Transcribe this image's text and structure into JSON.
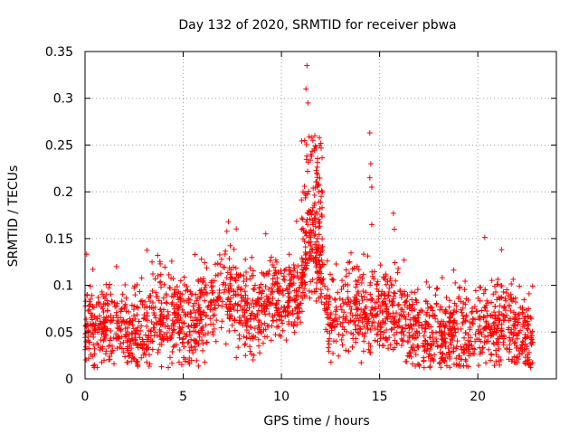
{
  "chart_data": {
    "type": "scatter",
    "title": "Day 132 of 2020, SRMTID for receiver pbwa",
    "xlabel": "GPS time / hours",
    "ylabel": "SRMTID / TECUs",
    "xlim": [
      0,
      24
    ],
    "ylim": [
      0,
      0.35
    ],
    "xticks": [
      0,
      5,
      10,
      15,
      20
    ],
    "xtick_labels": [
      "0",
      "5",
      "10",
      "15",
      "20"
    ],
    "yticks": [
      0,
      0.05,
      0.1,
      0.15,
      0.2,
      0.25,
      0.3,
      0.35
    ],
    "ytick_labels": [
      "0",
      "0.05",
      "0.1",
      "0.15",
      "0.2",
      "0.25",
      "0.3",
      "0.35"
    ],
    "grid": true,
    "marker": "+",
    "color": "#ff0000",
    "series": [
      {
        "name": "SRMTID",
        "profile": {
          "x": [
            0,
            1,
            2,
            3,
            3.8,
            4.5,
            5,
            5.5,
            6,
            6.5,
            7,
            7.5,
            8,
            8.5,
            9,
            9.5,
            10,
            10.5,
            11,
            11.3,
            11.6,
            12,
            12.5,
            13,
            13.5,
            14,
            14.5,
            15,
            15.5,
            16,
            16.5,
            17,
            18,
            19,
            20,
            21,
            22,
            22.8
          ],
          "median": [
            0.05,
            0.055,
            0.05,
            0.05,
            0.07,
            0.065,
            0.06,
            0.055,
            0.065,
            0.08,
            0.095,
            0.09,
            0.075,
            0.07,
            0.075,
            0.08,
            0.085,
            0.09,
            0.085,
            0.13,
            0.15,
            0.11,
            0.065,
            0.07,
            0.08,
            0.075,
            0.07,
            0.07,
            0.075,
            0.065,
            0.05,
            0.05,
            0.045,
            0.05,
            0.055,
            0.055,
            0.05,
            0.045
          ]
        },
        "peaks": [
          {
            "x": 11.3,
            "y": 0.335
          },
          {
            "x": 11.35,
            "y": 0.295
          },
          {
            "x": 11.25,
            "y": 0.31
          },
          {
            "x": 11.7,
            "y": 0.26
          },
          {
            "x": 11.6,
            "y": 0.255
          },
          {
            "x": 11.5,
            "y": 0.24
          },
          {
            "x": 11.8,
            "y": 0.22
          },
          {
            "x": 11.9,
            "y": 0.2
          },
          {
            "x": 11.1,
            "y": 0.2
          },
          {
            "x": 11.4,
            "y": 0.18
          },
          {
            "x": 14.5,
            "y": 0.263
          },
          {
            "x": 14.55,
            "y": 0.23
          },
          {
            "x": 14.5,
            "y": 0.215
          },
          {
            "x": 14.6,
            "y": 0.205
          },
          {
            "x": 14.6,
            "y": 0.165
          },
          {
            "x": 15.7,
            "y": 0.177
          },
          {
            "x": 15.75,
            "y": 0.16
          },
          {
            "x": 7.3,
            "y": 0.168
          },
          {
            "x": 9.2,
            "y": 0.155
          },
          {
            "x": 1.6,
            "y": 0.12
          },
          {
            "x": 3.7,
            "y": 0.132
          },
          {
            "x": 5.6,
            "y": 0.133
          }
        ]
      }
    ]
  }
}
